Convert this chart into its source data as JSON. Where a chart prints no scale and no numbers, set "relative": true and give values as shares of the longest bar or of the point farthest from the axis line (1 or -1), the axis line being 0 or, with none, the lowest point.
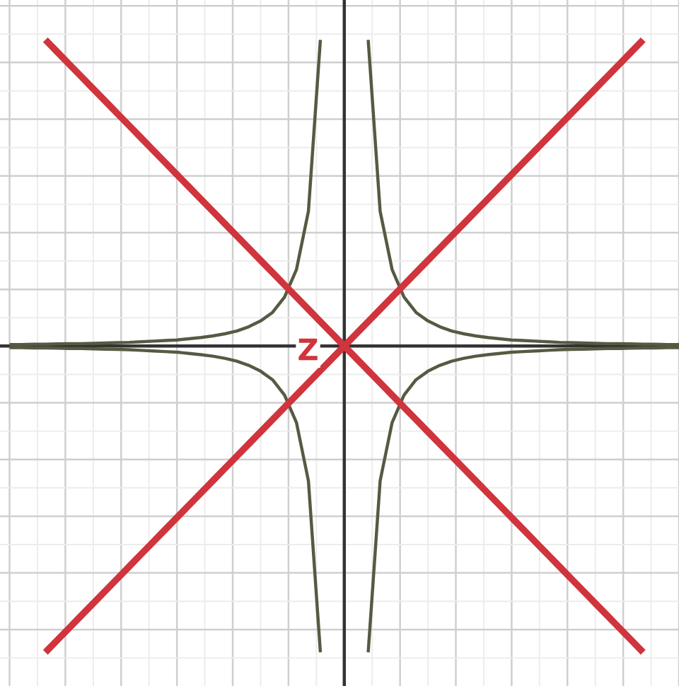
{
  "chart_data": {
    "type": "line",
    "relative": true,
    "grid": true,
    "annotations": [
      "Z"
    ],
    "categories": [
      null,
      null,
      null,
      null,
      null,
      null,
      null,
      null,
      null,
      null,
      null,
      null,
      null,
      null,
      null,
      null,
      null,
      null,
      null,
      null,
      null,
      null,
      null,
      null,
      null,
      null,
      null,
      null,
      null,
      null,
      null,
      null,
      null,
      null,
      null,
      null,
      null,
      null,
      null,
      null,
      null,
      null,
      null,
      null,
      null,
      null,
      null,
      null,
      null,
      null,
      null,
      null,
      null,
      null,
      null,
      null,
      null
    ],
    "series": [
      {
        "color": "#565a42",
        "values": [
          null,
          null,
          null,
          null,
          null,
          null,
          null,
          null,
          null,
          null,
          null,
          null,
          null,
          null,
          null,
          null,
          null,
          null,
          null,
          null,
          null,
          null,
          null,
          null,
          null,
          null,
          null,
          null,
          null,
          null,
          1,
          0.44,
          0.25,
          0.16,
          0.11,
          0.082,
          0.063,
          0.049,
          0.04,
          0.033,
          0.028,
          0.024,
          0.02,
          0.018,
          0.016,
          0.014,
          0.012,
          0.011,
          0.01,
          0.009,
          0.008,
          0.008,
          0.007,
          0.006,
          0.006,
          0.005,
          0.005
        ]
      },
      {
        "color": "#565a42",
        "values": [
          0.005,
          0.005,
          0.006,
          0.006,
          0.007,
          0.008,
          0.008,
          0.009,
          0.01,
          0.011,
          0.012,
          0.014,
          0.016,
          0.018,
          0.02,
          0.024,
          0.028,
          0.033,
          0.04,
          0.049,
          0.063,
          0.082,
          0.11,
          0.16,
          0.25,
          0.44,
          1,
          null,
          null,
          null,
          null,
          null,
          null,
          null,
          null,
          null,
          null,
          null,
          null,
          null,
          null,
          null,
          null,
          null,
          null,
          null,
          null,
          null,
          null,
          null,
          null,
          null,
          null,
          null,
          null,
          null,
          null
        ]
      },
      {
        "color": "#565a42",
        "values": [
          null,
          null,
          null,
          null,
          null,
          null,
          null,
          null,
          null,
          null,
          null,
          null,
          null,
          null,
          null,
          null,
          null,
          null,
          null,
          null,
          null,
          null,
          null,
          null,
          null,
          null,
          null,
          null,
          null,
          null,
          -1,
          -0.44,
          -0.25,
          -0.16,
          -0.11,
          -0.082,
          -0.063,
          -0.049,
          -0.04,
          -0.033,
          -0.028,
          -0.024,
          -0.02,
          -0.018,
          -0.016,
          -0.014,
          -0.012,
          -0.011,
          -0.01,
          -0.009,
          -0.008,
          -0.008,
          -0.007,
          -0.006,
          -0.006,
          -0.005,
          -0.005
        ]
      },
      {
        "color": "#565a42",
        "values": [
          -0.005,
          -0.005,
          -0.006,
          -0.006,
          -0.007,
          -0.008,
          -0.008,
          -0.009,
          -0.01,
          -0.011,
          -0.012,
          -0.014,
          -0.016,
          -0.018,
          -0.02,
          -0.024,
          -0.028,
          -0.033,
          -0.04,
          -0.049,
          -0.063,
          -0.082,
          -0.11,
          -0.16,
          -0.25,
          -0.44,
          -1,
          null,
          null,
          null,
          null,
          null,
          null,
          null,
          null,
          null,
          null,
          null,
          null,
          null,
          null,
          null,
          null,
          null,
          null,
          null,
          null,
          null,
          null,
          null,
          null,
          null,
          null,
          null,
          null,
          null,
          null
        ]
      },
      {
        "color": "#d0343c",
        "values": [
          null,
          null,
          null,
          -1,
          -0.96,
          -0.92,
          -0.88,
          -0.84,
          -0.8,
          -0.76,
          -0.72,
          -0.68,
          -0.64,
          -0.6,
          -0.56,
          -0.52,
          -0.48,
          -0.44,
          -0.4,
          -0.36,
          -0.32,
          -0.28,
          -0.24,
          -0.2,
          -0.16,
          -0.12,
          -0.08,
          -0.04,
          0,
          0.04,
          0.08,
          0.12,
          0.16,
          0.2,
          0.24,
          0.28,
          0.32,
          0.36,
          0.4,
          0.44,
          0.48,
          0.52,
          0.56,
          0.6,
          0.64,
          0.68,
          0.72,
          0.76,
          0.8,
          0.84,
          0.88,
          0.92,
          0.96,
          1,
          null,
          null,
          null
        ]
      },
      {
        "color": "#d0343c",
        "values": [
          null,
          null,
          null,
          1,
          0.96,
          0.92,
          0.88,
          0.84,
          0.8,
          0.76,
          0.72,
          0.68,
          0.64,
          0.6,
          0.56,
          0.52,
          0.48,
          0.44,
          0.4,
          0.36,
          0.32,
          0.28,
          0.24,
          0.2,
          0.16,
          0.12,
          0.08,
          0.04,
          0,
          -0.04,
          -0.08,
          -0.12,
          -0.16,
          -0.2,
          -0.24,
          -0.28,
          -0.32,
          -0.36,
          -0.4,
          -0.44,
          -0.48,
          -0.52,
          -0.56,
          -0.6,
          -0.64,
          -0.68,
          -0.72,
          -0.76,
          -0.8,
          -0.84,
          -0.88,
          -0.92,
          -0.96,
          -1,
          null,
          null,
          null
        ]
      }
    ]
  }
}
